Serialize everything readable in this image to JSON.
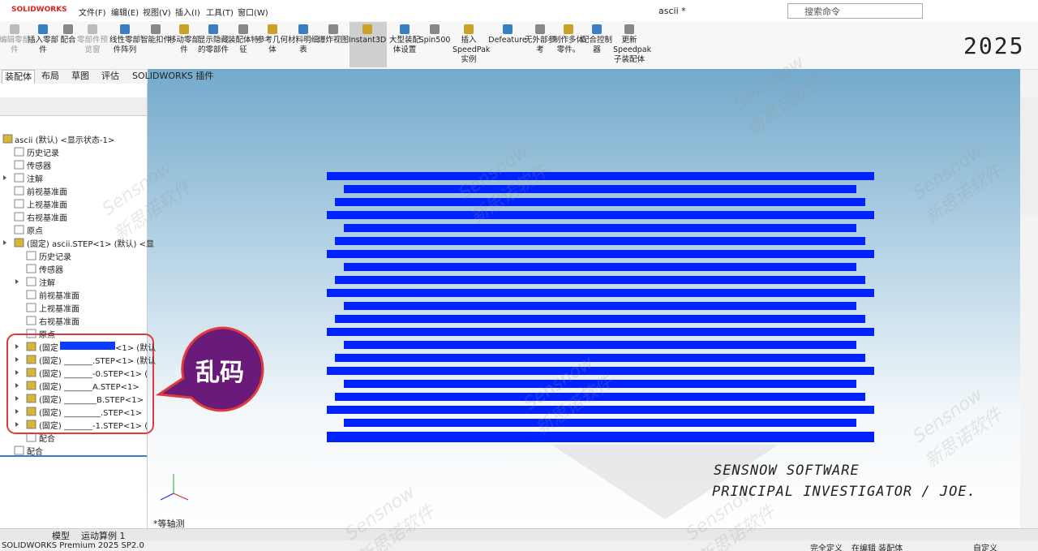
{
  "title_bar": {
    "logo": "SOLIDWORKS",
    "menus": [
      "文件(F)",
      "编辑(E)",
      "视图(V)",
      "插入(I)",
      "工具(T)",
      "窗口(W)"
    ],
    "document": "ascii *",
    "search": "搜索命令"
  },
  "ribbon": {
    "buttons": [
      "编辑零部件",
      "插入零部件",
      "配合",
      "零部件预览窗",
      "线性零部件阵列",
      "智能扣件",
      "移动零部件",
      "显示隐藏的零部件",
      "装配体特征",
      "参考几何体",
      "材料明细表",
      "爆炸视图",
      "Instant3D",
      "大型装配体设置",
      "Spin500",
      "插入SpeedPak实例",
      "Defeature",
      "无外部参考",
      "制作多体零件。",
      "配合控制器",
      "更新Speedpak子装配体"
    ],
    "version_mark": "2025"
  },
  "tabs": [
    "装配体",
    "布局",
    "草图",
    "评估",
    "SOLIDWORKS 插件"
  ],
  "tree": {
    "items": [
      {
        "label": "ascii (默认) <显示状态-1>"
      },
      {
        "label": "历史记录"
      },
      {
        "label": "传感器"
      },
      {
        "label": "注解"
      },
      {
        "label": "前视基准面"
      },
      {
        "label": "上视基准面"
      },
      {
        "label": "右视基准面"
      },
      {
        "label": "原点"
      },
      {
        "label": "(固定) ascii.STEP<1> (默认) <显"
      },
      {
        "label": "历史记录"
      },
      {
        "label": "传感器"
      },
      {
        "label": "注解"
      },
      {
        "label": "前视基准面"
      },
      {
        "label": "上视基准面"
      },
      {
        "label": "右视基准面"
      },
      {
        "label": "原点"
      },
      {
        "label": "(固定",
        "suffix": "<1> (默认"
      },
      {
        "label": "(固定) _______.STEP<1> (默认"
      },
      {
        "label": "(固定) _______-0.STEP<1> ("
      },
      {
        "label": "(固定) _______A.STEP<1>"
      },
      {
        "label": "(固定) ________B.STEP<1>"
      },
      {
        "label": "(固定) _________.STEP<1>"
      },
      {
        "label": "(固定) _______-1.STEP<1> ("
      },
      {
        "label": "配合"
      },
      {
        "label": "配合"
      }
    ]
  },
  "callout": "乱码",
  "viewport": {
    "view_name": "*等轴测",
    "watermark": "Sensnow",
    "watermark_cn": "新思诺软件",
    "signature": [
      "SENSNOW SOFTWARE",
      "PRINCIPAL INVESTIGATOR / JOE."
    ]
  },
  "bottom_tabs": [
    "模型",
    "运动算例 1"
  ],
  "status_bar": {
    "product": "SOLIDWORKS Premium 2025 SP2.0",
    "items": [
      "完全定义",
      "在编辑 装配体",
      "自定义"
    ]
  }
}
